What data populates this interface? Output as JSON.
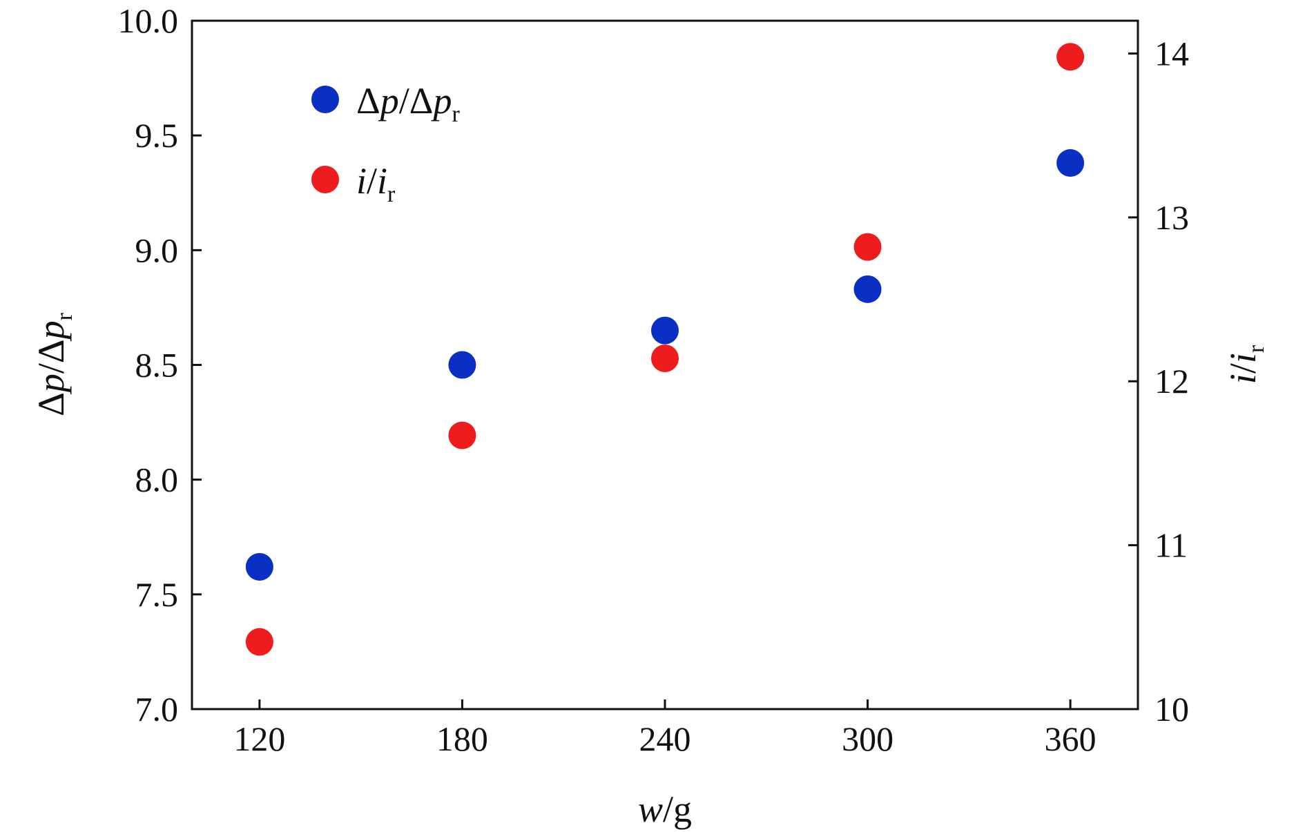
{
  "chart_data": {
    "type": "scatter",
    "title": "",
    "x": [
      120,
      180,
      240,
      300,
      360
    ],
    "xlim": [
      100,
      380
    ],
    "xticks": [
      "120",
      "180",
      "240",
      "300",
      "360"
    ],
    "xlabel": {
      "main": "w",
      "unit": "/g"
    },
    "y_left": {
      "label": {
        "delta1": "Δ",
        "p1": "p",
        "slash": "/",
        "delta2": "Δ",
        "p2": "p",
        "sub": "r"
      },
      "ylim": [
        7.0,
        10.0
      ],
      "ticks": [
        "7.0",
        "7.5",
        "8.0",
        "8.5",
        "9.0",
        "9.5",
        "10.0"
      ]
    },
    "y_right": {
      "label": {
        "i1": "i",
        "slash": "/",
        "i2": "i",
        "sub": "r"
      },
      "ylim": [
        10,
        14.2
      ],
      "ticks": [
        "10",
        "11",
        "12",
        "13",
        "14"
      ]
    },
    "grid": false,
    "legend_position": "top-left",
    "series": [
      {
        "legend": {
          "delta1": "Δ",
          "p1": "p",
          "slash": "/",
          "delta2": "Δ",
          "p2": "p",
          "sub": "r"
        },
        "axis": "left",
        "color": "#0a2fc4",
        "x": [
          120,
          180,
          240,
          300,
          360
        ],
        "values": [
          7.62,
          8.5,
          8.65,
          8.83,
          9.38
        ]
      },
      {
        "legend": {
          "i1": "i",
          "slash": "/",
          "i2": "i",
          "sub": "r"
        },
        "axis": "right",
        "color": "#ee1c1c",
        "x": [
          120,
          180,
          240,
          300,
          360
        ],
        "values": [
          10.41,
          11.67,
          12.14,
          12.82,
          13.98
        ]
      }
    ]
  }
}
